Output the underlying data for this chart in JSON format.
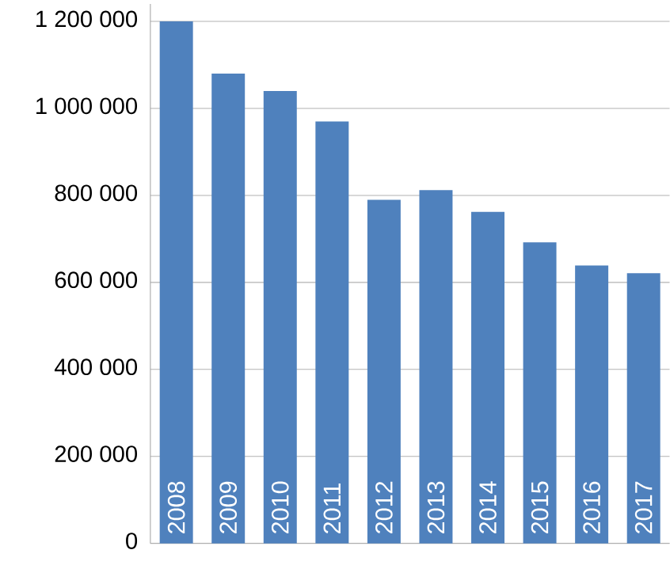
{
  "chart_data": {
    "type": "bar",
    "categories": [
      "2008",
      "2009",
      "2010",
      "2011",
      "2012",
      "2013",
      "2014",
      "2015",
      "2016",
      "2017"
    ],
    "values": [
      1200000,
      1080000,
      1040000,
      970000,
      790000,
      812000,
      762000,
      692000,
      639000,
      621000
    ],
    "color": "#4f81bd",
    "ylim": [
      0,
      1240000
    ],
    "yticks": [
      0,
      {
        "value": 200000,
        "label": "200 000"
      },
      {
        "value": 400000,
        "label": "400 000"
      },
      {
        "value": 600000,
        "label": "600 000"
      },
      {
        "value": 800000,
        "label": "800 000"
      },
      {
        "value": 1000000,
        "label": "1 000 000"
      },
      {
        "value": 1200000,
        "label": "1 200 000"
      }
    ],
    "grid": "y"
  }
}
